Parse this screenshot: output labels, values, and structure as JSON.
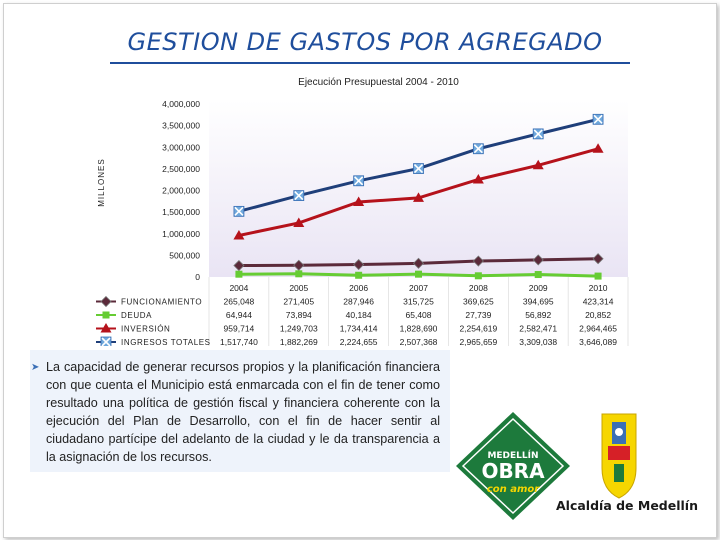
{
  "slide": {
    "title": "GESTION DE GASTOS POR AGREGADO",
    "bullet": "La capacidad de generar recursos propios y la planificación financiera con que cuenta el Municipio está enmarcada con el fin de tener como resultado una política de gestión fiscal y financiera coherente con la ejecución del Plan de Desarrollo, con el fin de hacer sentir al ciudadano partícipe del adelanto de la ciudad y le da transparencia a la asignación de los recursos.",
    "logo": {
      "line1": "MEDELLÍN",
      "line2": "OBRA",
      "line3": "con amor",
      "alcaldia": "Alcaldía de Medellín",
      "colors": {
        "green": "#1d7a3c",
        "light_green": "#8dc63f",
        "yellow": "#f6d600",
        "red": "#d62027"
      }
    }
  },
  "chart_data": {
    "type": "line",
    "title": "Ejecución Presupuestal 2004 - 2010",
    "ylabel": "MILLONES",
    "ylim": [
      0,
      4000000
    ],
    "yticks": [
      "4,000,000",
      "3,500,000",
      "3,000,000",
      "2,500,000",
      "2,000,000",
      "1,500,000",
      "1,000,000",
      "500,000",
      "0"
    ],
    "categories": [
      "2004",
      "2005",
      "2006",
      "2007",
      "2008",
      "2009",
      "2010"
    ],
    "series": [
      {
        "name": "FUNCIONAMIENTO",
        "color": "#5b2a3a",
        "marker": "diamond",
        "values": [
          265048,
          271405,
          287946,
          315725,
          369625,
          394695,
          423314
        ],
        "labels": [
          "265,048",
          "271,405",
          "287,946",
          "315,725",
          "369,625",
          "394,695",
          "423,314"
        ]
      },
      {
        "name": "DEUDA",
        "color": "#66cc33",
        "marker": "square",
        "values": [
          64944,
          73894,
          40184,
          65408,
          27739,
          56892,
          20852
        ],
        "labels": [
          "64,944",
          "73,894",
          "40,184",
          "65,408",
          "27,739",
          "56,892",
          "20,852"
        ]
      },
      {
        "name": "INVERSIÓN",
        "color": "#b5121b",
        "marker": "triangle",
        "values": [
          959714,
          1249703,
          1734414,
          1828690,
          2254619,
          2582471,
          2964465
        ],
        "labels": [
          "959,714",
          "1,249,703",
          "1,734,414",
          "1,828,690",
          "2,254,619",
          "2,582,471",
          "2,964,465"
        ]
      },
      {
        "name": "INGRESOS TOTALES",
        "color": "#1f3f7a",
        "marker": "x",
        "values": [
          1517740,
          1882269,
          2224655,
          2507368,
          2965659,
          3309038,
          3646089
        ],
        "labels": [
          "1,517,740",
          "1,882,269",
          "2,224,655",
          "2,507,368",
          "2,965,659",
          "3,309,038",
          "3,646,089"
        ]
      }
    ],
    "grid": false,
    "background_gradient": [
      "#ffffff",
      "#e9e4f4"
    ],
    "legend": "table-below"
  }
}
